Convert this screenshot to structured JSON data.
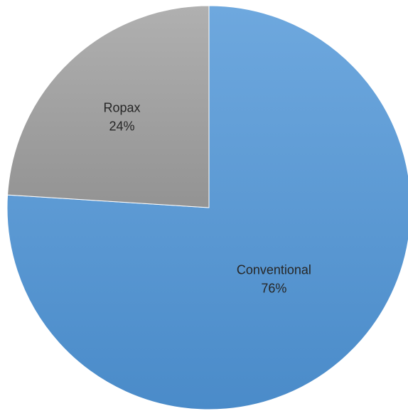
{
  "chart_data": {
    "type": "pie",
    "slices": [
      {
        "name": "Conventional",
        "value": 76,
        "value_label": "76%",
        "color": "#5b9bd5",
        "color_light": "#6ea8de",
        "color_dark": "#4a8bc9"
      },
      {
        "name": "Ropax",
        "value": 24,
        "value_label": "24%",
        "color": "#a5a5a5",
        "color_light": "#b0b0b0",
        "color_dark": "#939393"
      }
    ],
    "start_angle_deg": 0,
    "direction": "clockwise",
    "legend": "none",
    "label_position": "inside"
  }
}
